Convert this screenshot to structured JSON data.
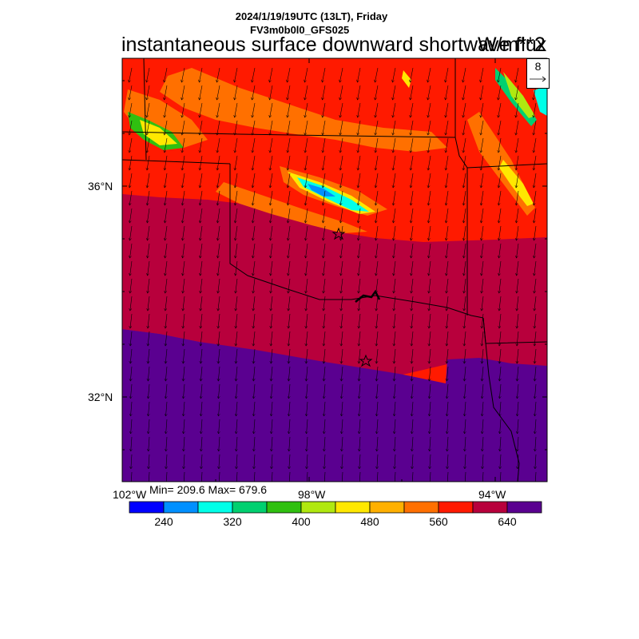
{
  "header": {
    "datetime": "2024/1/19/19UTC (13LT), Friday",
    "model": "FV3m0b0l0_GFS025",
    "title": "instantaneous surface downward shortwave flux",
    "units": "W/m**2"
  },
  "map": {
    "lat_labels": [
      "36°N",
      "32°N"
    ],
    "lon_labels": [
      "102°W",
      "98°W",
      "94°W"
    ],
    "stats": "Min= 209.6 Max= 679.6",
    "vector_reference": "8"
  },
  "colorbar": {
    "colors": [
      "#0000ff",
      "#0090ff",
      "#00ffe8",
      "#00d070",
      "#30c010",
      "#b0e810",
      "#ffe800",
      "#ffb000",
      "#ff7000",
      "#ff1a00",
      "#b8003c",
      "#5a0090"
    ],
    "labels": [
      "240",
      "320",
      "400",
      "480",
      "560",
      "640"
    ]
  },
  "colors": {
    "bg": "#ffffff",
    "field_low": "#5a0090",
    "field_mid": "#b8003c",
    "field_high": "#ff1a00",
    "field_orange": "#ff7000"
  }
}
